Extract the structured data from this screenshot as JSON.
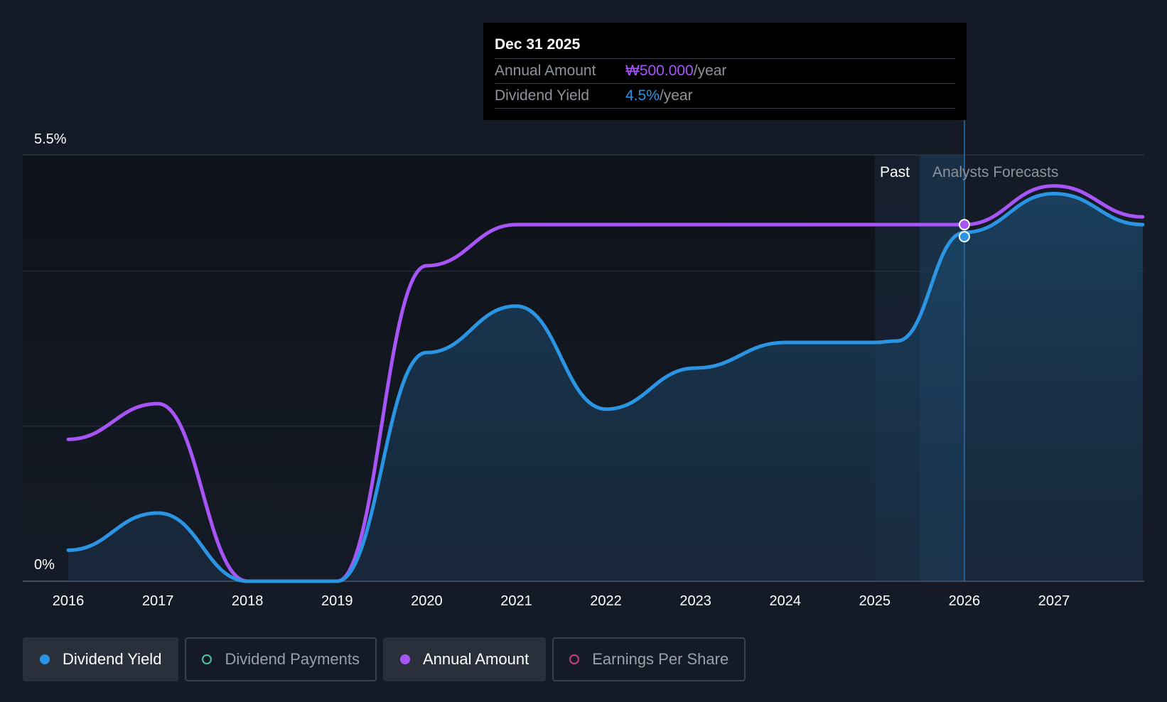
{
  "tooltip": {
    "date": "Dec 31 2025",
    "rows": [
      {
        "label": "Annual Amount",
        "value": "₩500.000",
        "unit": "/year"
      },
      {
        "label": "Dividend Yield",
        "value": "4.5%",
        "unit": "/year"
      }
    ]
  },
  "regions": {
    "past_label": "Past",
    "forecast_label": "Analysts Forecasts"
  },
  "legend": [
    {
      "label": "Dividend Yield",
      "color": "#2b95e4",
      "active": true
    },
    {
      "label": "Dividend Payments",
      "color": "#45c2a8",
      "active": false
    },
    {
      "label": "Annual Amount",
      "color": "#a855f7",
      "active": true
    },
    {
      "label": "Earnings Per Share",
      "color": "#c2447a",
      "active": false
    }
  ],
  "chart_data": {
    "type": "line",
    "y_tick_labels": [
      "5.5%",
      "0%"
    ],
    "ylim": [
      0,
      5.5
    ],
    "x_tick_labels": [
      "2016",
      "2017",
      "2018",
      "2019",
      "2020",
      "2021",
      "2022",
      "2023",
      "2024",
      "2025",
      "2026",
      "2027"
    ],
    "xlim": [
      2016,
      2027.99
    ],
    "gridlines": [
      0,
      2,
      4,
      5.5
    ],
    "series": [
      {
        "name": "Dividend Yield",
        "color": "#2b95e4",
        "points": [
          [
            2016,
            0.4
          ],
          [
            2017,
            0.88
          ],
          [
            2018,
            0
          ],
          [
            2019,
            0
          ],
          [
            2020,
            2.95
          ],
          [
            2021,
            3.55
          ],
          [
            2022,
            2.22
          ],
          [
            2023,
            2.75
          ],
          [
            2024,
            3.08
          ],
          [
            2025,
            3.08
          ],
          [
            2025.25,
            3.1
          ],
          [
            2026,
            4.5
          ],
          [
            2027,
            5.0
          ],
          [
            2027.99,
            4.6
          ]
        ]
      },
      {
        "name": "Annual Amount",
        "color": "#a855f7",
        "points": [
          [
            2016,
            1.83
          ],
          [
            2017,
            2.29
          ],
          [
            2018,
            0
          ],
          [
            2019,
            0
          ],
          [
            2020,
            4.07
          ],
          [
            2021,
            4.6
          ],
          [
            2022,
            4.6
          ],
          [
            2023,
            4.6
          ],
          [
            2024,
            4.6
          ],
          [
            2025,
            4.6
          ],
          [
            2026,
            4.6
          ],
          [
            2027,
            5.1
          ],
          [
            2027.99,
            4.7
          ]
        ]
      }
    ],
    "highlight_x": 2026,
    "past_band": [
      2025,
      2025.5
    ],
    "forecast_band": [
      2025.5,
      2026
    ]
  }
}
